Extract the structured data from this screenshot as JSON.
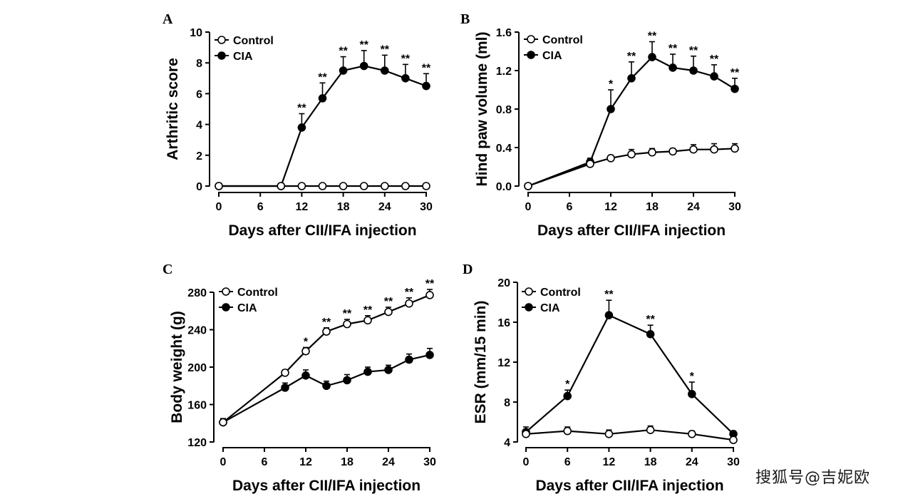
{
  "watermark": "搜狐号@吉妮欧",
  "chart_data": [
    {
      "panel_label": "A",
      "type": "line",
      "xlabel": "Days after CII/IFA injection",
      "ylabel": "Arthritic score",
      "xlim": [
        0,
        30
      ],
      "ylim": [
        0,
        10
      ],
      "xticks": [
        0,
        6,
        12,
        18,
        24,
        30
      ],
      "yticks": [
        0,
        2,
        4,
        6,
        8,
        10
      ],
      "legend": "top-left",
      "series": [
        {
          "name": "Control",
          "marker": "open",
          "x": [
            0,
            9,
            12,
            15,
            18,
            21,
            24,
            27,
            30
          ],
          "y": [
            0,
            0,
            0,
            0,
            0,
            0,
            0,
            0,
            0
          ],
          "err": [
            0,
            0,
            0,
            0,
            0,
            0,
            0,
            0,
            0
          ]
        },
        {
          "name": "CIA",
          "marker": "filled",
          "x": [
            0,
            9,
            12,
            15,
            18,
            21,
            24,
            27,
            30
          ],
          "y": [
            0,
            0,
            3.8,
            5.7,
            7.5,
            7.8,
            7.5,
            7.0,
            6.5
          ],
          "err": [
            0,
            0,
            0.9,
            1.0,
            0.9,
            1.0,
            1.0,
            0.9,
            0.8
          ],
          "sig": [
            "",
            "",
            "**",
            "**",
            "**",
            "**",
            "**",
            "**",
            "**"
          ]
        }
      ]
    },
    {
      "panel_label": "B",
      "type": "line",
      "xlabel": "Days after CII/IFA injection",
      "ylabel": "Hind paw volume (ml)",
      "xlim": [
        0,
        30
      ],
      "ylim": [
        0,
        1.6
      ],
      "xticks": [
        0,
        6,
        12,
        18,
        24,
        30
      ],
      "yticks": [
        0.0,
        0.4,
        0.8,
        1.2,
        1.6
      ],
      "ytick_labels": [
        "0.0",
        "0.4",
        "0.8",
        "1.2",
        "1.6"
      ],
      "legend": "top-left",
      "series": [
        {
          "name": "Control",
          "marker": "open",
          "x": [
            0,
            9,
            12,
            15,
            18,
            21,
            24,
            27,
            30
          ],
          "y": [
            0,
            0.23,
            0.29,
            0.33,
            0.35,
            0.36,
            0.38,
            0.38,
            0.39
          ],
          "err": [
            0,
            0.03,
            0.03,
            0.05,
            0.04,
            0.03,
            0.05,
            0.06,
            0.05
          ]
        },
        {
          "name": "CIA",
          "marker": "filled",
          "x": [
            0,
            9,
            12,
            15,
            18,
            21,
            24,
            27,
            30
          ],
          "y": [
            0,
            0.25,
            0.8,
            1.12,
            1.34,
            1.23,
            1.2,
            1.14,
            1.01
          ],
          "err": [
            0,
            0.04,
            0.2,
            0.17,
            0.16,
            0.14,
            0.15,
            0.12,
            0.11
          ],
          "sig": [
            "",
            "",
            "*",
            "**",
            "**",
            "**",
            "**",
            "**",
            "**"
          ]
        }
      ]
    },
    {
      "panel_label": "C",
      "type": "line",
      "xlabel": "Days after CII/IFA injection",
      "ylabel": "Body weight (g)",
      "xlim": [
        0,
        30
      ],
      "ylim": [
        120,
        280
      ],
      "xticks": [
        0,
        6,
        12,
        18,
        24,
        30
      ],
      "yticks": [
        120,
        160,
        200,
        240,
        280
      ],
      "legend": "top-left",
      "series": [
        {
          "name": "Control",
          "marker": "open",
          "x": [
            0,
            9,
            12,
            15,
            18,
            21,
            24,
            27,
            30
          ],
          "y": [
            141,
            194,
            217,
            238,
            246,
            250,
            259,
            268,
            277
          ],
          "err": [
            3,
            3,
            4,
            4,
            5,
            5,
            5,
            6,
            6
          ],
          "sig": [
            "",
            "",
            "*",
            "**",
            "**",
            "**",
            "**",
            "**",
            "**"
          ]
        },
        {
          "name": "CIA",
          "marker": "filled",
          "x": [
            0,
            9,
            12,
            15,
            18,
            21,
            24,
            27,
            30
          ],
          "y": [
            141,
            178,
            191,
            180,
            186,
            195,
            197,
            208,
            213
          ],
          "err": [
            4,
            5,
            6,
            5,
            6,
            5,
            5,
            6,
            7
          ]
        }
      ]
    },
    {
      "panel_label": "D",
      "type": "line",
      "xlabel": "Days after CII/IFA injection",
      "ylabel": "ESR (mm/15 min)",
      "xlim": [
        0,
        30
      ],
      "ylim": [
        4,
        20
      ],
      "xticks": [
        0,
        6,
        12,
        18,
        24,
        30
      ],
      "yticks": [
        4,
        8,
        12,
        16,
        20
      ],
      "legend": "top-left",
      "series": [
        {
          "name": "Control",
          "marker": "open",
          "x": [
            0,
            6,
            12,
            18,
            24,
            30
          ],
          "y": [
            4.8,
            5.1,
            4.8,
            5.2,
            4.8,
            4.2
          ],
          "err": [
            0.4,
            0.4,
            0.4,
            0.4,
            0.3,
            0.3
          ]
        },
        {
          "name": "CIA",
          "marker": "filled",
          "x": [
            0,
            6,
            12,
            18,
            24,
            30
          ],
          "y": [
            5.0,
            8.6,
            16.7,
            14.8,
            8.8,
            4.8
          ],
          "err": [
            0.5,
            0.6,
            1.5,
            0.9,
            1.2,
            0.3
          ],
          "sig": [
            "",
            "*",
            "**",
            "**",
            "*",
            ""
          ]
        }
      ]
    }
  ]
}
